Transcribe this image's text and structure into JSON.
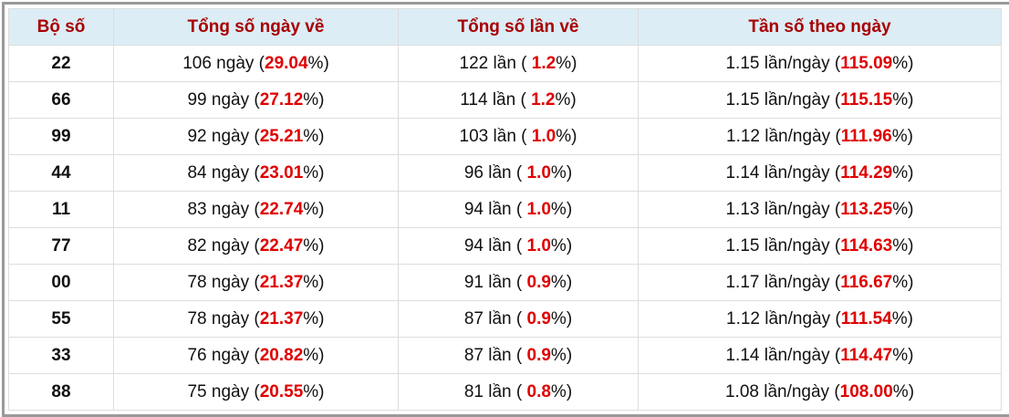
{
  "table": {
    "header": [
      "Bộ số",
      "Tổng số ngày về",
      "Tổng số lần về",
      "Tần số theo ngày"
    ],
    "rows": [
      [
        "22",
        [
          "106 ngày (",
          "29.04",
          "%)"
        ],
        [
          "122 lần ( ",
          "1.2",
          "%)"
        ],
        [
          "1.15 lần/ngày (",
          "115.09",
          "%)"
        ]
      ],
      [
        "66",
        [
          "99 ngày (",
          "27.12",
          "%)"
        ],
        [
          "114 lần ( ",
          "1.2",
          "%)"
        ],
        [
          "1.15 lần/ngày (",
          "115.15",
          "%)"
        ]
      ],
      [
        "99",
        [
          "92 ngày (",
          "25.21",
          "%)"
        ],
        [
          "103 lần ( ",
          "1.0",
          "%)"
        ],
        [
          "1.12 lần/ngày (",
          "111.96",
          "%)"
        ]
      ],
      [
        "44",
        [
          "84 ngày (",
          "23.01",
          "%)"
        ],
        [
          "96 lần ( ",
          "1.0",
          "%)"
        ],
        [
          "1.14 lần/ngày (",
          "114.29",
          "%)"
        ]
      ],
      [
        "11",
        [
          "83 ngày (",
          "22.74",
          "%)"
        ],
        [
          "94 lần ( ",
          "1.0",
          "%)"
        ],
        [
          "1.13 lần/ngày (",
          "113.25",
          "%)"
        ]
      ],
      [
        "77",
        [
          "82 ngày (",
          "22.47",
          "%)"
        ],
        [
          "94 lần ( ",
          "1.0",
          "%)"
        ],
        [
          "1.15 lần/ngày (",
          "114.63",
          "%)"
        ]
      ],
      [
        "00",
        [
          "78 ngày (",
          "21.37",
          "%)"
        ],
        [
          "91 lần ( ",
          "0.9",
          "%)"
        ],
        [
          "1.17 lần/ngày (",
          "116.67",
          "%)"
        ]
      ],
      [
        "55",
        [
          "78 ngày (",
          "21.37",
          "%)"
        ],
        [
          "87 lần ( ",
          "0.9",
          "%)"
        ],
        [
          "1.12 lần/ngày (",
          "111.54",
          "%)"
        ]
      ],
      [
        "33",
        [
          "76 ngày (",
          "20.82",
          "%)"
        ],
        [
          "87 lần ( ",
          "0.9",
          "%)"
        ],
        [
          "1.14 lần/ngày (",
          "114.47",
          "%)"
        ]
      ],
      [
        "88",
        [
          "75 ngày (",
          "20.55",
          "%)"
        ],
        [
          "81 lần ( ",
          "0.8",
          "%)"
        ],
        [
          "1.08 lần/ngày (",
          "108.00",
          "%)"
        ]
      ]
    ]
  }
}
